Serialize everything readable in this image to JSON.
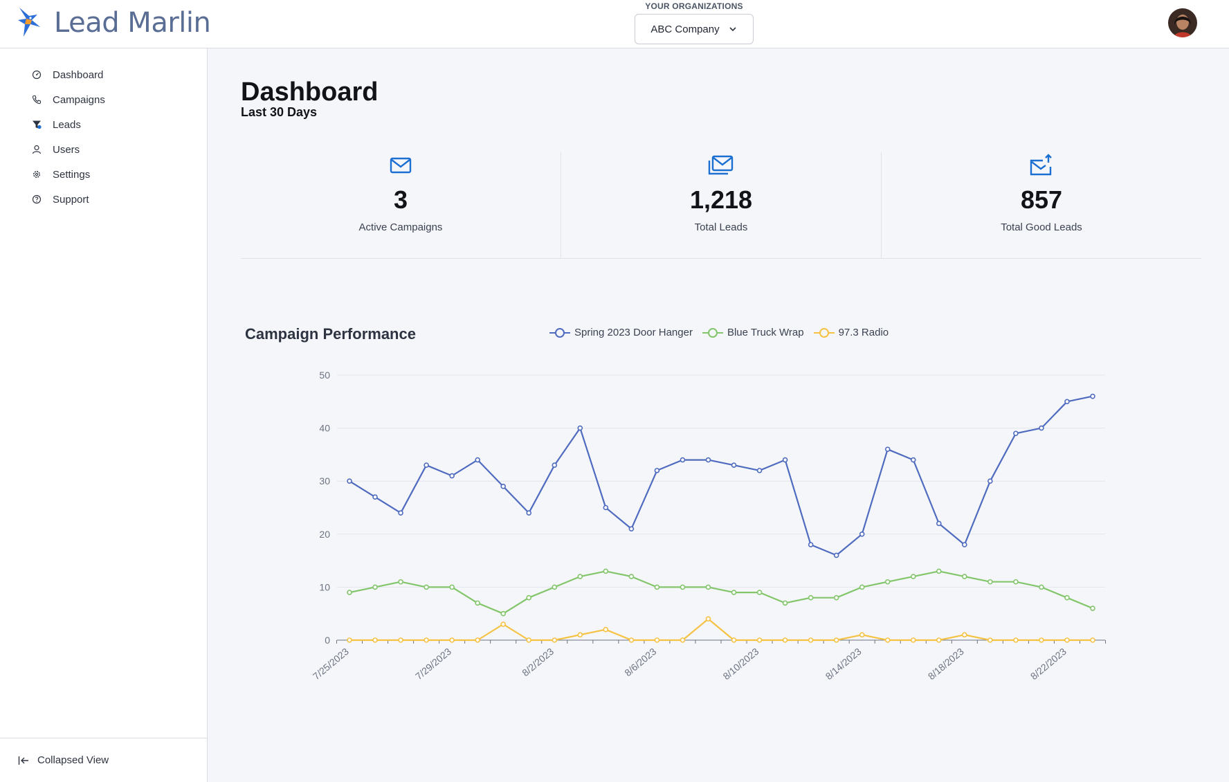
{
  "app": {
    "brand": "Lead Marlin"
  },
  "header": {
    "org_label": "YOUR ORGANIZATIONS",
    "org_selected": "ABC Company"
  },
  "sidebar": {
    "items": [
      {
        "label": "Dashboard",
        "icon": "dashboard-icon"
      },
      {
        "label": "Campaigns",
        "icon": "phone-icon"
      },
      {
        "label": "Leads",
        "icon": "funnel-icon"
      },
      {
        "label": "Users",
        "icon": "user-icon"
      },
      {
        "label": "Settings",
        "icon": "gear-icon"
      },
      {
        "label": "Support",
        "icon": "question-icon"
      }
    ],
    "collapse_label": "Collapsed View"
  },
  "main": {
    "title": "Dashboard",
    "subtitle": "Last 30 Days",
    "stats": [
      {
        "value": "3",
        "label": "Active Campaigns",
        "icon": "mail-icon"
      },
      {
        "value": "1,218",
        "label": "Total Leads",
        "icon": "mail-stack-icon"
      },
      {
        "value": "857",
        "label": "Total Good Leads",
        "icon": "mail-upload-icon"
      }
    ]
  },
  "colors": {
    "accent": "#1b6fd1",
    "series1": "#4f6bbf",
    "series2": "#82c56a",
    "series3": "#f5c243"
  },
  "chart_data": {
    "type": "line",
    "title": "Campaign Performance",
    "ylim": [
      0,
      50
    ],
    "yticks": [
      0,
      10,
      20,
      30,
      40,
      50
    ],
    "x": [
      "7/25/2023",
      "7/26/2023",
      "7/27/2023",
      "7/28/2023",
      "7/29/2023",
      "7/30/2023",
      "7/31/2023",
      "8/1/2023",
      "8/2/2023",
      "8/3/2023",
      "8/4/2023",
      "8/5/2023",
      "8/6/2023",
      "8/7/2023",
      "8/8/2023",
      "8/9/2023",
      "8/10/2023",
      "8/11/2023",
      "8/12/2023",
      "8/13/2023",
      "8/14/2023",
      "8/15/2023",
      "8/16/2023",
      "8/17/2023",
      "8/18/2023",
      "8/19/2023",
      "8/20/2023",
      "8/21/2023",
      "8/22/2023",
      "8/23/2023"
    ],
    "xtick_labels": [
      "7/25/2023",
      "7/29/2023",
      "8/2/2023",
      "8/6/2023",
      "8/10/2023",
      "8/14/2023",
      "8/18/2023",
      "8/22/2023"
    ],
    "legend_position": "top",
    "grid": true,
    "series": [
      {
        "name": "Spring 2023 Door Hanger",
        "values": [
          30,
          27,
          24,
          33,
          31,
          34,
          29,
          24,
          33,
          40,
          25,
          21,
          32,
          34,
          34,
          33,
          32,
          34,
          18,
          16,
          20,
          36,
          34,
          22,
          18,
          30,
          39,
          40,
          45,
          46
        ]
      },
      {
        "name": "Blue Truck Wrap",
        "values": [
          9,
          10,
          11,
          10,
          10,
          7,
          5,
          8,
          10,
          12,
          13,
          12,
          10,
          10,
          10,
          9,
          9,
          7,
          8,
          8,
          10,
          11,
          12,
          13,
          12,
          11,
          11,
          10,
          8,
          6
        ]
      },
      {
        "name": "97.3 Radio",
        "values": [
          0,
          0,
          0,
          0,
          0,
          0,
          3,
          0,
          0,
          1,
          2,
          0,
          0,
          0,
          4,
          0,
          0,
          0,
          0,
          0,
          1,
          0,
          0,
          0,
          1,
          0,
          0,
          0,
          0,
          0
        ]
      }
    ]
  }
}
